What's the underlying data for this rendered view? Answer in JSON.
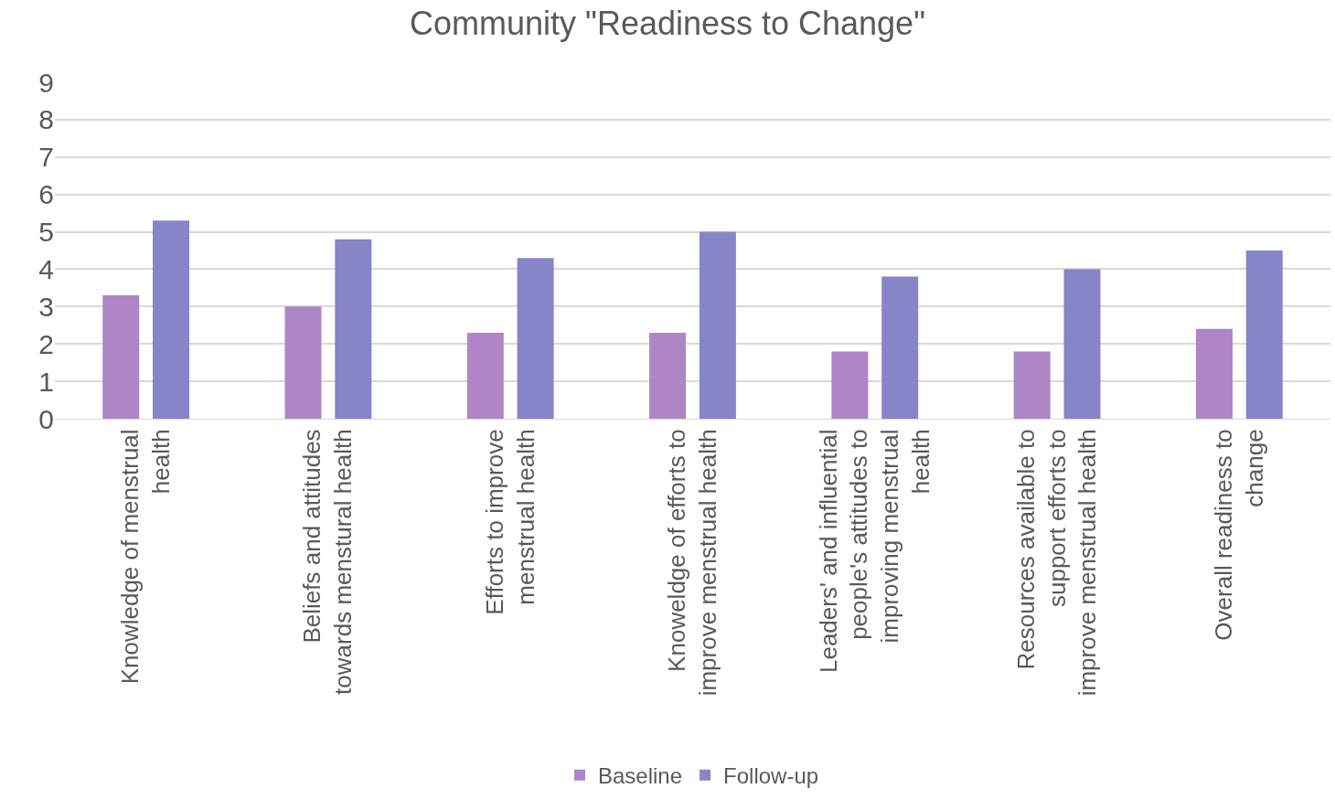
{
  "chart_data": {
    "type": "bar",
    "title": "Community \"Readiness to Change\"",
    "categories": [
      "Knowledge of menstrual health",
      "Beliefs and attitudes towards menstural health",
      "Efforts to improve menstrual health",
      "Knoweldge of efforts to improve menstrual health",
      "Leaders' and influential people's attitudes to improving menstrual health",
      "Resources available to support efforts to improve menstrual health",
      "Overall readiness to change"
    ],
    "series": [
      {
        "name": "Baseline",
        "color": "#ae86c6",
        "values": [
          3.3,
          3.0,
          2.3,
          2.3,
          1.8,
          1.8,
          2.4
        ]
      },
      {
        "name": "Follow-up",
        "color": "#8884c8",
        "values": [
          5.3,
          4.8,
          4.3,
          5.0,
          3.8,
          4.0,
          4.5
        ]
      }
    ],
    "ylim": [
      0,
      9
    ],
    "yticks": [
      0,
      1,
      2,
      3,
      4,
      5,
      6,
      7,
      8,
      9
    ],
    "grid": "y",
    "legend": "bottom"
  }
}
